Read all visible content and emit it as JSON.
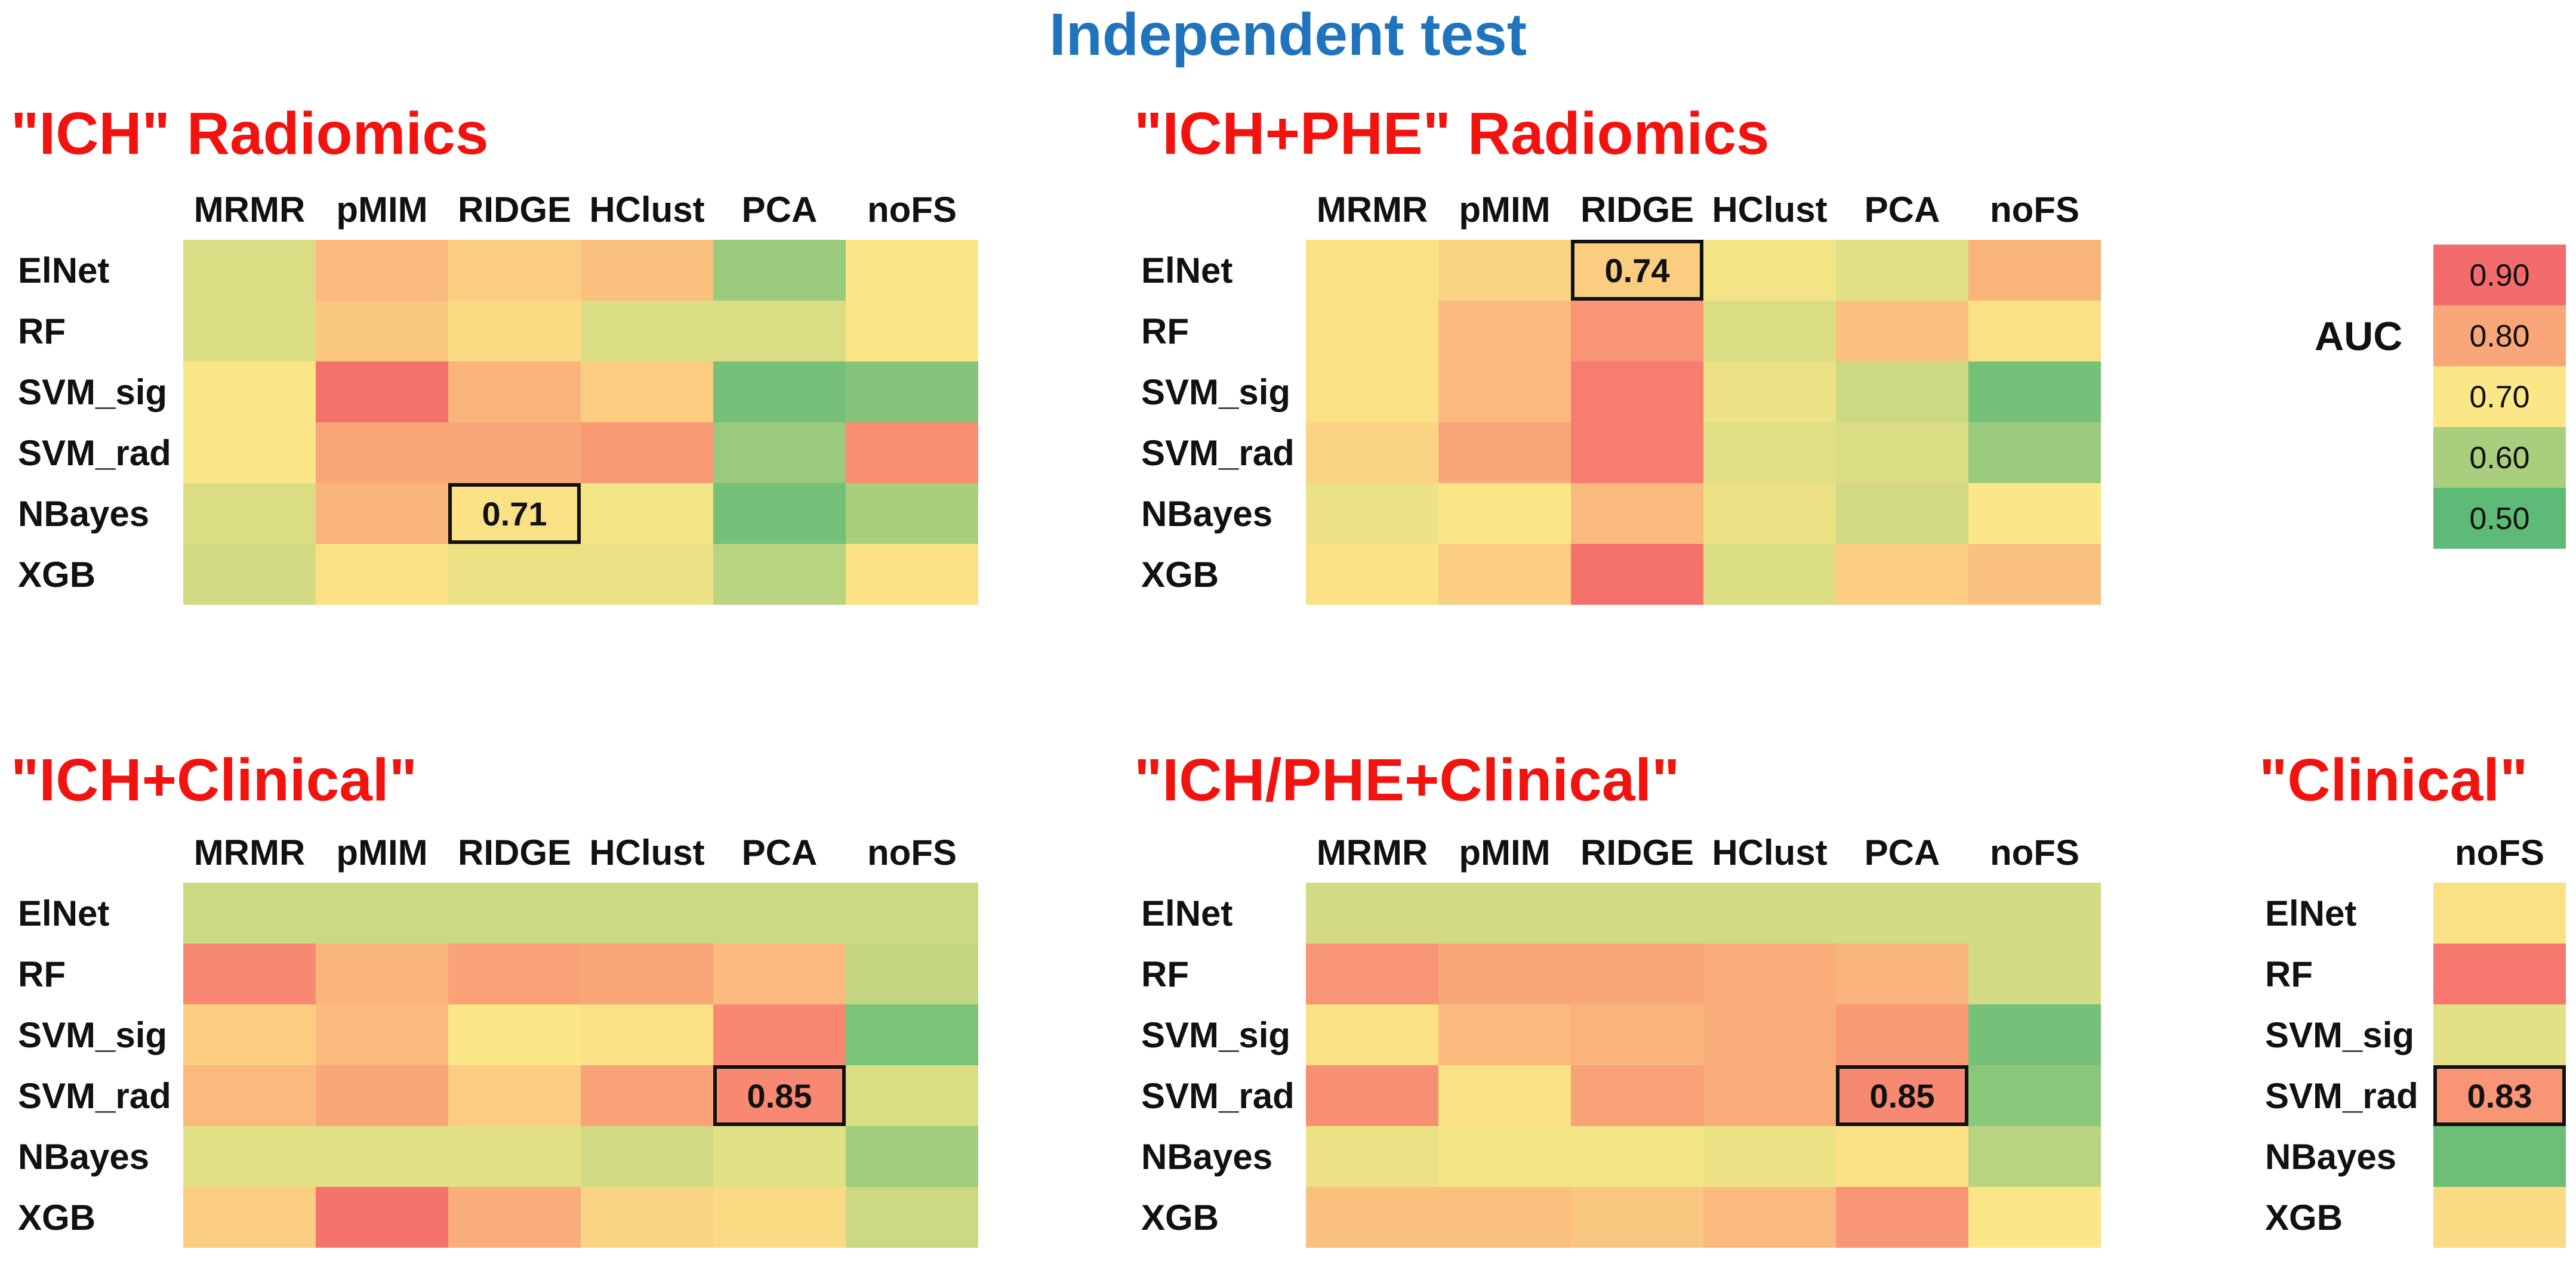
{
  "title": "Independent test",
  "chart_data": {
    "type": "heatmap",
    "color_scale": {
      "label": "AUC",
      "stops": [
        {
          "value": 0.9,
          "label": "0.90",
          "color": "#f46b6b"
        },
        {
          "value": 0.8,
          "label": "0.80",
          "color": "#f9a778"
        },
        {
          "value": 0.7,
          "label": "0.70",
          "color": "#fbe787"
        },
        {
          "value": 0.6,
          "label": "0.60",
          "color": "#a9cf7e"
        },
        {
          "value": 0.5,
          "label": "0.50",
          "color": "#5ebb77"
        }
      ]
    },
    "panels": [
      {
        "title": "\"ICH\" Radiomics",
        "columns": [
          "MRMR",
          "pMIM",
          "RIDGE",
          "HClust",
          "PCA",
          "noFS"
        ],
        "rows": [
          "ElNet",
          "RF",
          "SVM_sig",
          "SVM_rad",
          "NBayes",
          "XGB"
        ],
        "values": [
          [
            0.66,
            0.77,
            0.74,
            0.76,
            0.58,
            0.7
          ],
          [
            0.66,
            0.75,
            0.72,
            0.66,
            0.66,
            0.7
          ],
          [
            0.7,
            0.89,
            0.78,
            0.74,
            0.53,
            0.55
          ],
          [
            0.7,
            0.8,
            0.8,
            0.82,
            0.58,
            0.84
          ],
          [
            0.66,
            0.78,
            0.71,
            0.69,
            0.53,
            0.6
          ],
          [
            0.65,
            0.71,
            0.68,
            0.68,
            0.62,
            0.71
          ]
        ],
        "highlight": {
          "row": "NBayes",
          "column": "RIDGE",
          "label": "0.71"
        }
      },
      {
        "title": "\"ICH+PHE\" Radiomics",
        "columns": [
          "MRMR",
          "pMIM",
          "RIDGE",
          "HClust",
          "PCA",
          "noFS"
        ],
        "rows": [
          "ElNet",
          "RF",
          "SVM_sig",
          "SVM_rad",
          "NBayes",
          "XGB"
        ],
        "values": [
          [
            0.71,
            0.73,
            0.74,
            0.69,
            0.67,
            0.78
          ],
          [
            0.71,
            0.77,
            0.83,
            0.66,
            0.76,
            0.71
          ],
          [
            0.71,
            0.77,
            0.87,
            0.68,
            0.64,
            0.53
          ],
          [
            0.73,
            0.8,
            0.87,
            0.67,
            0.66,
            0.58
          ],
          [
            0.68,
            0.7,
            0.77,
            0.68,
            0.65,
            0.7
          ],
          [
            0.71,
            0.74,
            0.89,
            0.66,
            0.74,
            0.76
          ]
        ],
        "highlight": {
          "row": "ElNet",
          "column": "RIDGE",
          "label": "0.74"
        }
      },
      {
        "title": "\"ICH+Clinical\"",
        "columns": [
          "MRMR",
          "pMIM",
          "RIDGE",
          "HClust",
          "PCA",
          "noFS"
        ],
        "rows": [
          "ElNet",
          "RF",
          "SVM_sig",
          "SVM_rad",
          "NBayes",
          "XGB"
        ],
        "values": [
          [
            0.64,
            0.64,
            0.64,
            0.64,
            0.64,
            0.64
          ],
          [
            0.85,
            0.78,
            0.81,
            0.8,
            0.77,
            0.63
          ],
          [
            0.74,
            0.77,
            0.7,
            0.71,
            0.85,
            0.54
          ],
          [
            0.77,
            0.8,
            0.74,
            0.81,
            0.85,
            0.66
          ],
          [
            0.67,
            0.67,
            0.67,
            0.65,
            0.67,
            0.59
          ],
          [
            0.74,
            0.89,
            0.79,
            0.73,
            0.72,
            0.64
          ]
        ],
        "highlight": {
          "row": "SVM_rad",
          "column": "PCA",
          "label": "0.85"
        }
      },
      {
        "title": "\"ICH/PHE+Clinical\"",
        "columns": [
          "MRMR",
          "pMIM",
          "RIDGE",
          "HClust",
          "PCA",
          "noFS"
        ],
        "rows": [
          "ElNet",
          "RF",
          "SVM_sig",
          "SVM_rad",
          "NBayes",
          "XGB"
        ],
        "values": [
          [
            0.65,
            0.65,
            0.65,
            0.65,
            0.65,
            0.65
          ],
          [
            0.83,
            0.8,
            0.8,
            0.79,
            0.78,
            0.65
          ],
          [
            0.71,
            0.77,
            0.78,
            0.79,
            0.82,
            0.53
          ],
          [
            0.84,
            0.71,
            0.81,
            0.79,
            0.85,
            0.56
          ],
          [
            0.68,
            0.69,
            0.69,
            0.68,
            0.71,
            0.62
          ],
          [
            0.76,
            0.76,
            0.75,
            0.77,
            0.83,
            0.7
          ]
        ],
        "highlight": {
          "row": "SVM_rad",
          "column": "PCA",
          "label": "0.85"
        }
      },
      {
        "title": "\"Clinical\"",
        "columns": [
          "noFS"
        ],
        "rows": [
          "ElNet",
          "RF",
          "SVM_sig",
          "SVM_rad",
          "NBayes",
          "XGB"
        ],
        "values": [
          [
            0.71
          ],
          [
            0.88
          ],
          [
            0.67
          ],
          [
            0.83
          ],
          [
            0.52
          ],
          [
            0.72
          ]
        ],
        "highlight": {
          "row": "SVM_rad",
          "column": "noFS",
          "label": "0.83"
        }
      }
    ]
  }
}
